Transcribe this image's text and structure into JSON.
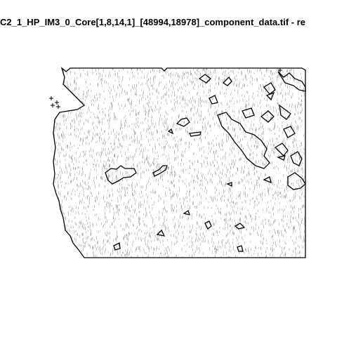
{
  "header": {
    "title": "C2_1_HP_IM3_0_Core[1,8,14,1]_[48994,18978]_component_data.tif - re"
  }
}
